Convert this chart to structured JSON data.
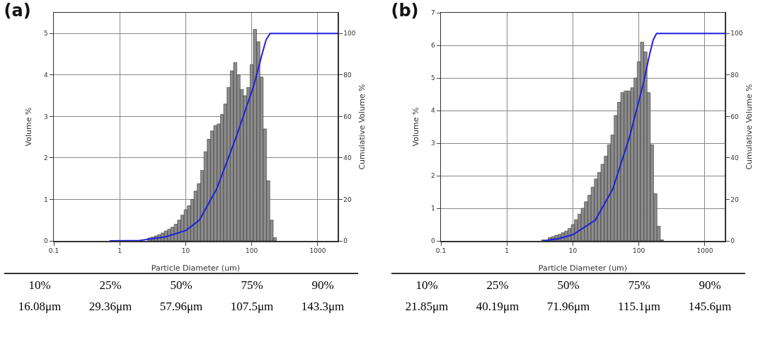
{
  "chart_data": [
    {
      "type": "bar",
      "title": "(a)",
      "xlabel": "Particle Diameter (um)",
      "ylabel": "Volume %",
      "y2label": "Cumulative Volume %",
      "log": "x",
      "grid": true,
      "xlim": [
        0.1,
        2000
      ],
      "xticks": [
        0.1,
        1,
        10,
        100,
        1000
      ],
      "ylim": [
        0,
        5.5
      ],
      "yticks": [
        0,
        1,
        2,
        3,
        4,
        5
      ],
      "y2lim": [
        0,
        110
      ],
      "y2ticks": [
        0,
        20,
        40,
        60,
        80,
        100
      ],
      "series": [
        {
          "color": "#8c8c8c",
          "x": [
            2.82,
            3.16,
            3.55,
            3.98,
            4.47,
            5.01,
            5.62,
            6.31,
            7.08,
            7.94,
            8.91,
            10,
            11.2,
            12.6,
            14.1,
            15.8,
            17.8,
            20.0,
            22.4,
            25.1,
            28.2,
            31.6,
            35.5,
            39.8,
            44.7,
            50.1,
            56.2,
            63.1,
            70.8,
            79.4,
            89.1,
            100,
            112,
            126,
            141,
            158,
            178,
            200,
            224
          ],
          "values": [
            0.07,
            0.09,
            0.12,
            0.15,
            0.19,
            0.24,
            0.28,
            0.33,
            0.4,
            0.5,
            0.62,
            0.75,
            0.85,
            1.0,
            1.2,
            1.38,
            1.7,
            2.15,
            2.45,
            2.65,
            2.78,
            2.82,
            3.05,
            3.3,
            3.7,
            4.1,
            4.3,
            4.0,
            3.65,
            3.5,
            3.7,
            4.25,
            5.1,
            4.8,
            3.95,
            2.7,
            1.45,
            0.5,
            0.08
          ]
        },
        {
          "type": "line",
          "axis": "y2",
          "color": "#1f1fe0",
          "x": [
            0.7,
            2,
            5,
            10,
            16.08,
            29.36,
            57.96,
            107.5,
            143.3,
            165,
            190,
            2000
          ],
          "values": [
            0,
            0.2,
            2,
            5,
            10,
            25,
            50,
            75,
            90,
            97,
            100,
            100
          ]
        }
      ],
      "annotations": [
        "10%",
        "25%",
        "50%",
        "75%",
        "90%",
        "16.08μm",
        "29.36μm",
        "57.96μm",
        "107.5μm",
        "143.3μm"
      ]
    },
    {
      "type": "bar",
      "title": "(b)",
      "xlabel": "Particle Diameter (um)",
      "ylabel": "Volume %",
      "y2label": "Cumulative Volume %",
      "log": "x",
      "grid": true,
      "xlim": [
        0.1,
        2000
      ],
      "xticks": [
        0.1,
        1,
        10,
        100,
        1000
      ],
      "ylim": [
        0,
        7
      ],
      "yticks": [
        0,
        1,
        2,
        3,
        4,
        5,
        6,
        7
      ],
      "y2lim": [
        0,
        110
      ],
      "y2ticks": [
        0,
        20,
        40,
        60,
        80,
        100
      ],
      "series": [
        {
          "color": "#8c8c8c",
          "x": [
            3.55,
            3.98,
            4.47,
            5.01,
            5.62,
            6.31,
            7.08,
            7.94,
            8.91,
            10,
            11.2,
            12.6,
            14.1,
            15.8,
            17.8,
            20.0,
            22.4,
            25.1,
            28.2,
            31.6,
            35.5,
            39.8,
            44.7,
            50.1,
            56.2,
            63.1,
            70.8,
            79.4,
            89.1,
            100,
            112,
            126,
            141,
            158,
            178,
            200,
            224
          ],
          "values": [
            0.03,
            null,
            0.1,
            0.13,
            0.17,
            0.2,
            0.25,
            0.3,
            0.38,
            0.5,
            0.65,
            0.82,
            1.0,
            1.2,
            1.4,
            1.65,
            1.9,
            2.1,
            2.35,
            2.6,
            2.95,
            3.25,
            3.85,
            4.25,
            4.55,
            4.6,
            4.6,
            4.7,
            5.0,
            5.5,
            6.1,
            5.8,
            4.55,
            2.95,
            1.45,
            0.45,
            0.03
          ]
        },
        {
          "type": "line",
          "axis": "y2",
          "color": "#1f1fe0",
          "x": [
            3.5,
            6,
            10,
            21.85,
            40.19,
            71.96,
            115.1,
            145.6,
            165,
            185,
            2000
          ],
          "values": [
            0,
            1,
            3,
            10,
            25,
            50,
            75,
            90,
            97,
            100,
            100
          ]
        }
      ],
      "annotations": [
        "10%",
        "25%",
        "50%",
        "75%",
        "90%",
        "21.85μm",
        "40.19μm",
        "71.96μm",
        "115.1μm",
        "145.6μm"
      ]
    }
  ]
}
